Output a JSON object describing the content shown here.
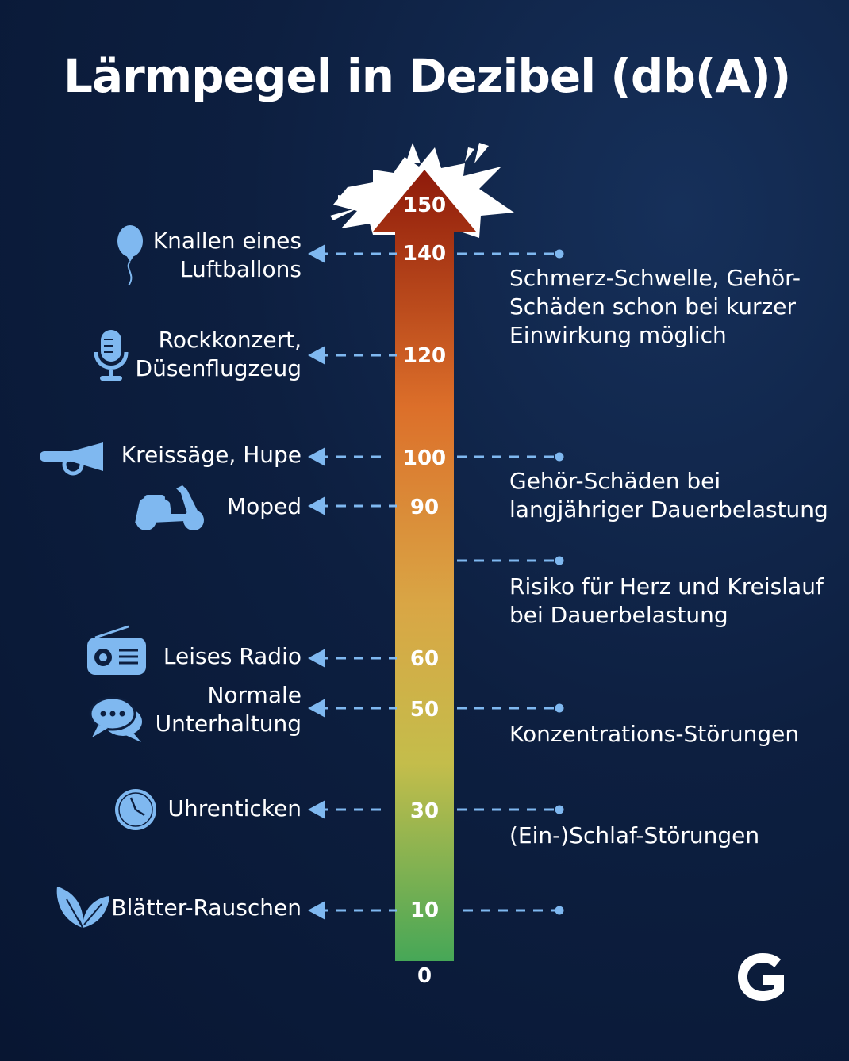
{
  "title": "Lärmpegel in Dezibel (db(A))",
  "scale": {
    "min_label": "0",
    "top_label": "150",
    "values": [
      "140",
      "120",
      "100",
      "90",
      "60",
      "50",
      "30",
      "10"
    ],
    "gradient_colors": [
      "#9b1c0c",
      "#e07b2a",
      "#d8ad45",
      "#b9c24a",
      "#4aaa55"
    ]
  },
  "examples": [
    {
      "icon": "balloon-icon",
      "lines": [
        "Knallen eines",
        "Luftballons"
      ],
      "db": "140"
    },
    {
      "icon": "microphone-icon",
      "lines": [
        "Rockkonzert,",
        "Düsenflugzeug"
      ],
      "db": "120"
    },
    {
      "icon": "horn-icon",
      "lines": [
        "Kreissäge, Hupe"
      ],
      "db": "100"
    },
    {
      "icon": "scooter-icon",
      "lines": [
        "Moped"
      ],
      "db": "90"
    },
    {
      "icon": "radio-icon",
      "lines": [
        "Leises Radio"
      ],
      "db": "60"
    },
    {
      "icon": "speech-bubbles-icon",
      "lines": [
        "Normale",
        "Unterhaltung"
      ],
      "db": "50"
    },
    {
      "icon": "clock-icon",
      "lines": [
        "Uhrenticken"
      ],
      "db": "30"
    },
    {
      "icon": "leaves-icon",
      "lines": [
        "Blätter-Rauschen"
      ],
      "db": "10"
    }
  ],
  "effects": [
    {
      "lines": [
        "Schmerz-Schwelle, Gehör-",
        "Schäden schon bei kurzer",
        "Einwirkung möglich"
      ],
      "db": "140"
    },
    {
      "lines": [
        "Gehör-Schäden bei",
        "langjähriger Dauerbelastung"
      ],
      "db": "100"
    },
    {
      "lines": [
        "Risiko für Herz und Kreislauf",
        "bei Dauerbelastung"
      ],
      "db": "80"
    },
    {
      "lines": [
        "Konzentrations-Störungen"
      ],
      "db": "50"
    },
    {
      "lines": [
        "(Ein-)Schlaf-Störungen"
      ],
      "db": "30"
    },
    {
      "lines": [],
      "db": "10"
    }
  ],
  "colors": {
    "accent": "#7fb8f0",
    "background": "#0d1f40",
    "text": "#ffffff"
  },
  "logo": "G"
}
